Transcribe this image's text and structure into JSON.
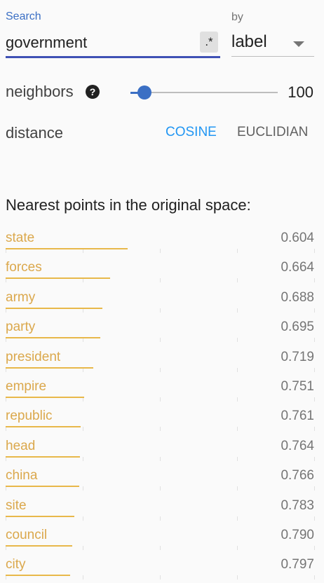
{
  "search": {
    "label": "Search",
    "value": "government",
    "regex_label": ".*",
    "by_label": "by",
    "by_value": "label"
  },
  "neighbors": {
    "label": "neighbors",
    "help_label": "?",
    "value": "100",
    "slider_fraction": 0.1
  },
  "distance": {
    "label": "distance",
    "options": [
      "COSINE",
      "EUCLIDIAN"
    ],
    "selected": "COSINE"
  },
  "nearest": {
    "title": "Nearest points in the original space:",
    "items": [
      {
        "label": "state",
        "value": "0.604"
      },
      {
        "label": "forces",
        "value": "0.664"
      },
      {
        "label": "army",
        "value": "0.688"
      },
      {
        "label": "party",
        "value": "0.695"
      },
      {
        "label": "president",
        "value": "0.719"
      },
      {
        "label": "empire",
        "value": "0.751"
      },
      {
        "label": "republic",
        "value": "0.761"
      },
      {
        "label": "head",
        "value": "0.764"
      },
      {
        "label": "china",
        "value": "0.766"
      },
      {
        "label": "site",
        "value": "0.783"
      },
      {
        "label": "council",
        "value": "0.790"
      },
      {
        "label": "city",
        "value": "0.797"
      }
    ]
  },
  "colors": {
    "accent": "#3b6fc4",
    "selected_option": "#2196f3",
    "result_label": "#dba84c",
    "result_bar": "#e8b84a"
  }
}
